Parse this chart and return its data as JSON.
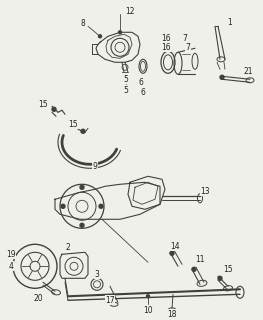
{
  "bg_color": "#f0f0eb",
  "line_color": "#404040",
  "text_color": "#222222",
  "figsize": [
    2.63,
    3.2
  ],
  "dpi": 100,
  "label_fs": 5.5,
  "lw_main": 0.8,
  "lw_thin": 0.5
}
